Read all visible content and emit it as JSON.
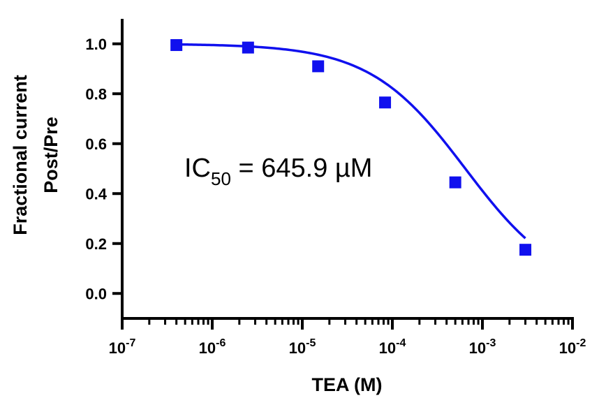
{
  "chart_data": {
    "type": "scatter",
    "xlabel": "TEA (M)",
    "ylabel_line1": "Fractional current",
    "ylabel_line2": "Post/Pre",
    "x_scale": "log",
    "xlim": [
      1e-07,
      0.01
    ],
    "ylim": [
      -0.1,
      1.1
    ],
    "x_ticks": [
      {
        "base": "10",
        "exp": "-7",
        "value": 1e-07
      },
      {
        "base": "10",
        "exp": "-6",
        "value": 1e-06
      },
      {
        "base": "10",
        "exp": "-5",
        "value": 1e-05
      },
      {
        "base": "10",
        "exp": "-4",
        "value": 0.0001
      },
      {
        "base": "10",
        "exp": "-3",
        "value": 0.001
      },
      {
        "base": "10",
        "exp": "-2",
        "value": 0.01
      }
    ],
    "y_ticks": [
      {
        "label": "0.0",
        "value": 0.0
      },
      {
        "label": "0.2",
        "value": 0.2
      },
      {
        "label": "0.4",
        "value": 0.4
      },
      {
        "label": "0.6",
        "value": 0.6
      },
      {
        "label": "0.8",
        "value": 0.8
      },
      {
        "label": "1.0",
        "value": 1.0
      }
    ],
    "points": [
      {
        "x": 4e-07,
        "y": 0.995
      },
      {
        "x": 2.5e-06,
        "y": 0.985
      },
      {
        "x": 1.5e-05,
        "y": 0.91
      },
      {
        "x": 8.3e-05,
        "y": 0.765
      },
      {
        "x": 0.0005,
        "y": 0.445
      },
      {
        "x": 0.003,
        "y": 0.175
      }
    ],
    "fit": {
      "ic50": 0.0006459,
      "hill": 0.82,
      "top": 1.0,
      "bottom": 0.0,
      "x_range": [
        4e-07,
        0.003
      ]
    },
    "grid": false,
    "colors": {
      "series": "#1010ee",
      "axis": "#000000"
    },
    "annotation": {
      "prefix": "IC",
      "subscript": "50",
      "suffix": " = 645.9 µM"
    }
  }
}
